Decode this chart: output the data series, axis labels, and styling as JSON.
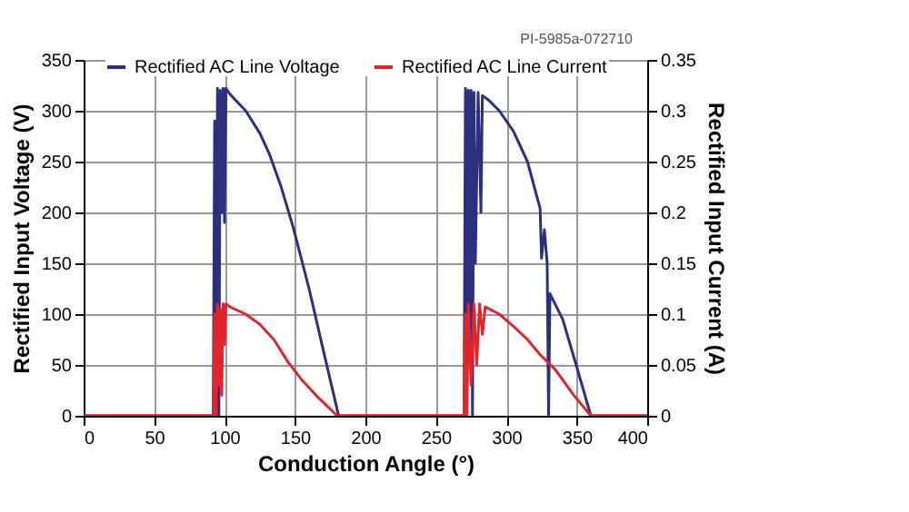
{
  "chart_data": {
    "type": "line",
    "xlabel": "Conduction Angle (°)",
    "ylabel": "Rectified Input Voltage (V)",
    "y2label": "Rectified Input Current (A)",
    "annotations": [
      "PI-5985a-072710"
    ],
    "xlim": [
      0,
      400
    ],
    "xticks": [
      0,
      50,
      100,
      150,
      200,
      250,
      300,
      350,
      400
    ],
    "ylim": [
      0,
      350
    ],
    "yticks": [
      0,
      50,
      100,
      150,
      200,
      250,
      300,
      350
    ],
    "y2lim": [
      0,
      0.35
    ],
    "y2ticks": [
      0,
      0.05,
      0.1,
      0.15,
      0.2,
      0.25,
      0.3,
      0.35
    ],
    "grid": true,
    "legend": "top",
    "marker": "none",
    "line_style": "solid",
    "series": [
      {
        "name": "Rectified AC Line Voltage",
        "color": "#2b2f7e",
        "x": [
          0,
          92,
          93,
          94,
          95,
          96,
          97,
          98,
          99,
          100,
          101,
          104,
          115,
          125,
          132,
          140,
          149,
          160,
          170,
          181,
          270,
          271,
          272,
          273,
          274,
          275,
          276,
          277,
          278,
          280,
          282,
          283,
          287,
          295,
          305,
          315,
          324,
          325,
          327,
          329,
          330,
          331,
          340,
          350,
          360,
          400
        ],
        "values": [
          0,
          0,
          290,
          0,
          322,
          0,
          320,
          200,
          322,
          190,
          322,
          316,
          300,
          278,
          257,
          226,
          184,
          125,
          65,
          0,
          0,
          322,
          0,
          320,
          60,
          320,
          0,
          318,
          150,
          318,
          200,
          315,
          311,
          300,
          280,
          250,
          204,
          155,
          183,
          150,
          0,
          120,
          95,
          48,
          0,
          0
        ]
      },
      {
        "name": "Rectified AC Line Current",
        "color": "#e0262b",
        "axis": "y2",
        "x": [
          0,
          92,
          93,
          94,
          95,
          96,
          97,
          98,
          99,
          100,
          101,
          104,
          115,
          125,
          135,
          145,
          155,
          165,
          180,
          270,
          271,
          272,
          273,
          275,
          277,
          279,
          281,
          283,
          285,
          295,
          305,
          315,
          324,
          335,
          348,
          360,
          400
        ],
        "values": [
          0,
          0,
          0.1,
          0,
          0.11,
          0.03,
          0.105,
          0.02,
          0.11,
          0.07,
          0.11,
          0.107,
          0.1,
          0.09,
          0.075,
          0.053,
          0.035,
          0.02,
          0,
          0,
          0.1,
          0,
          0.11,
          0.03,
          0.11,
          0.05,
          0.11,
          0.08,
          0.107,
          0.1,
          0.088,
          0.075,
          0.06,
          0.045,
          0.02,
          0,
          0
        ]
      }
    ]
  }
}
